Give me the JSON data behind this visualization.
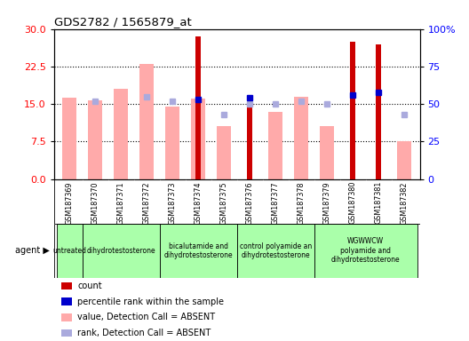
{
  "title": "GDS2782 / 1565879_at",
  "samples": [
    "GSM187369",
    "GSM187370",
    "GSM187371",
    "GSM187372",
    "GSM187373",
    "GSM187374",
    "GSM187375",
    "GSM187376",
    "GSM187377",
    "GSM187378",
    "GSM187379",
    "GSM187380",
    "GSM187381",
    "GSM187382"
  ],
  "count_values": [
    null,
    null,
    null,
    null,
    null,
    28.5,
    null,
    15.0,
    null,
    null,
    null,
    27.5,
    27.0,
    null
  ],
  "percentile_rank": [
    null,
    null,
    null,
    null,
    null,
    53.0,
    null,
    54.0,
    null,
    null,
    null,
    56.0,
    58.0,
    null
  ],
  "absent_value": [
    16.2,
    15.8,
    18.0,
    23.0,
    14.5,
    16.0,
    10.5,
    null,
    13.5,
    16.5,
    10.5,
    null,
    null,
    7.5
  ],
  "absent_rank": [
    null,
    52.0,
    null,
    55.0,
    52.0,
    null,
    43.0,
    50.0,
    50.0,
    52.0,
    50.0,
    null,
    null,
    43.0
  ],
  "agent_groups": [
    {
      "label": "untreated",
      "start": 0,
      "end": 1
    },
    {
      "label": "dihydrotestosterone",
      "start": 1,
      "end": 4
    },
    {
      "label": "bicalutamide and\ndihydrotestosterone",
      "start": 4,
      "end": 7
    },
    {
      "label": "control polyamide an\ndihydrotestosterone",
      "start": 7,
      "end": 10
    },
    {
      "label": "WGWWCW\npolyamide and\ndihydrotestosterone",
      "start": 10,
      "end": 14
    }
  ],
  "ylim_left": [
    0,
    30
  ],
  "ylim_right": [
    0,
    100
  ],
  "yticks_left": [
    0,
    7.5,
    15,
    22.5,
    30
  ],
  "yticks_right": [
    0,
    25,
    50,
    75,
    100
  ],
  "ytick_labels_right": [
    "0",
    "25",
    "50",
    "75",
    "100%"
  ],
  "count_color": "#cc0000",
  "absent_value_color": "#ffaaaa",
  "percentile_rank_color": "#0000cc",
  "absent_rank_color": "#aaaadd",
  "bg_color": "#ffffff",
  "xtick_bg": "#c8c8c8",
  "agent_color": "#aaffaa",
  "legend_items": [
    {
      "color": "#cc0000",
      "label": "count"
    },
    {
      "color": "#0000cc",
      "label": "percentile rank within the sample"
    },
    {
      "color": "#ffaaaa",
      "label": "value, Detection Call = ABSENT"
    },
    {
      "color": "#aaaadd",
      "label": "rank, Detection Call = ABSENT"
    }
  ]
}
